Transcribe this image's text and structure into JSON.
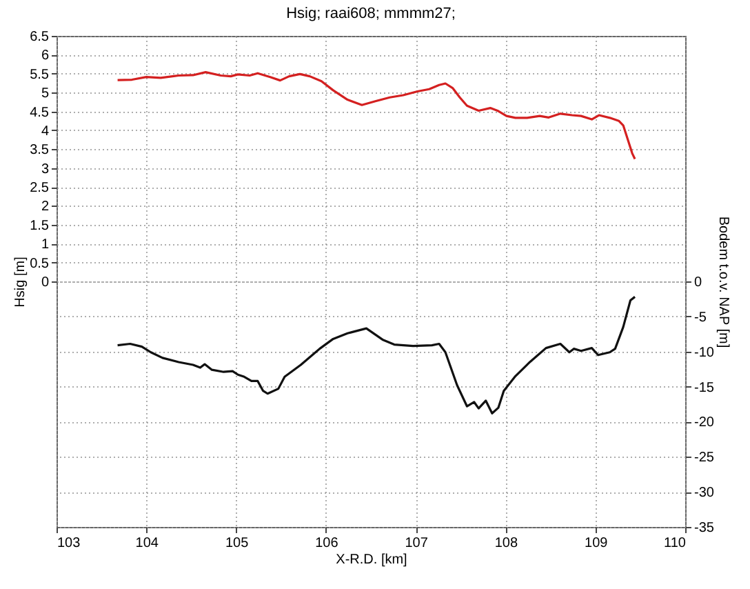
{
  "chart_data": {
    "type": "line",
    "title": "Hsig; raai608; mmmm27;",
    "xlabel": "X-R.D. [km]",
    "ylabel": "Hsig [m]",
    "y2label": "Bodem t.o.v. NAP [m]",
    "xlim": [
      103,
      110
    ],
    "xticks": [
      103,
      104,
      105,
      106,
      107,
      108,
      109,
      110
    ],
    "ylim": [
      -6.5,
      6.5
    ],
    "yticks": [
      0,
      0.5,
      1,
      1.5,
      2,
      2.5,
      3,
      3.5,
      4,
      4.5,
      5,
      5.5,
      6,
      6.5
    ],
    "y2lim": [
      -35,
      35
    ],
    "y2ticks": [
      -35,
      -30,
      -25,
      -20,
      -15,
      -10,
      -5,
      0
    ],
    "grid": true,
    "series": [
      {
        "color": "#d42020",
        "x": [
          103.68,
          103.84,
          104.0,
          104.16,
          104.36,
          104.52,
          104.66,
          104.83,
          104.94,
          105.02,
          105.15,
          105.24,
          105.38,
          105.49,
          105.59,
          105.71,
          105.82,
          105.95,
          106.08,
          106.24,
          106.4,
          106.55,
          106.71,
          106.86,
          107.02,
          107.15,
          107.26,
          107.33,
          107.41,
          107.49,
          107.57,
          107.7,
          107.83,
          107.91,
          108.01,
          108.11,
          108.24,
          108.38,
          108.48,
          108.61,
          108.74,
          108.84,
          108.96,
          109.04,
          109.16,
          109.26,
          109.31,
          109.36,
          109.41,
          109.44
        ],
        "values": [
          5.33,
          5.34,
          5.41,
          5.39,
          5.45,
          5.46,
          5.54,
          5.45,
          5.43,
          5.48,
          5.45,
          5.51,
          5.41,
          5.32,
          5.43,
          5.49,
          5.43,
          5.3,
          5.06,
          4.81,
          4.67,
          4.77,
          4.87,
          4.93,
          5.03,
          5.09,
          5.2,
          5.24,
          5.12,
          4.87,
          4.65,
          4.52,
          4.59,
          4.52,
          4.38,
          4.33,
          4.33,
          4.38,
          4.34,
          4.44,
          4.4,
          4.38,
          4.29,
          4.4,
          4.33,
          4.25,
          4.13,
          3.76,
          3.39,
          3.24
        ]
      },
      {
        "color": "#111111",
        "axis": "y2",
        "x": [
          103.68,
          103.82,
          103.95,
          104.05,
          104.18,
          104.36,
          104.52,
          104.6,
          104.65,
          104.73,
          104.86,
          104.96,
          105.02,
          105.09,
          105.17,
          105.24,
          105.3,
          105.35,
          105.47,
          105.54,
          105.72,
          105.93,
          106.08,
          106.24,
          106.45,
          106.63,
          106.76,
          106.97,
          107.18,
          107.26,
          107.33,
          107.46,
          107.57,
          107.65,
          107.7,
          107.78,
          107.85,
          107.92,
          107.98,
          108.11,
          108.27,
          108.45,
          108.61,
          108.71,
          108.76,
          108.84,
          108.96,
          109.03,
          109.16,
          109.22,
          109.31,
          109.39,
          109.44
        ],
        "values": [
          -9.1,
          -8.9,
          -9.3,
          -10.1,
          -10.9,
          -11.5,
          -11.9,
          -12.3,
          -11.8,
          -12.6,
          -12.9,
          -12.8,
          -13.3,
          -13.6,
          -14.2,
          -14.2,
          -15.6,
          -16.0,
          -15.3,
          -13.6,
          -11.9,
          -9.6,
          -8.2,
          -7.4,
          -6.7,
          -8.3,
          -9.0,
          -9.2,
          -9.1,
          -8.9,
          -10.1,
          -14.8,
          -17.8,
          -17.2,
          -18.1,
          -17.0,
          -18.8,
          -18.0,
          -15.6,
          -13.5,
          -11.5,
          -9.5,
          -8.9,
          -10.1,
          -9.6,
          -9.9,
          -9.5,
          -10.5,
          -10.1,
          -9.6,
          -6.5,
          -2.7,
          -2.2
        ]
      }
    ]
  }
}
